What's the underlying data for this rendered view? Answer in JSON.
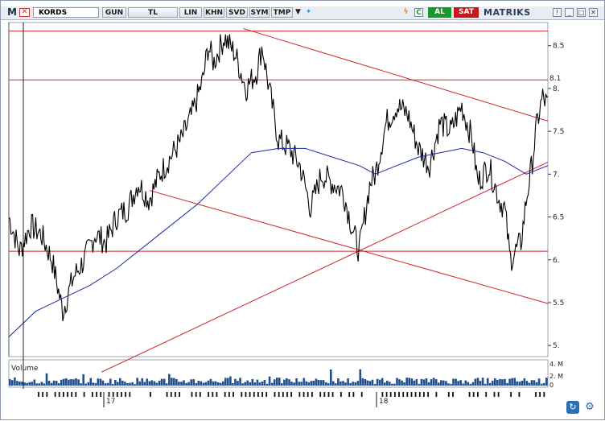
{
  "toolbar": {
    "logo": "M",
    "symbol": "KORDS",
    "buttons": [
      "GUN",
      "TL",
      "LIN",
      "KHN",
      "SVD",
      "SYM",
      "TMP"
    ],
    "buy": "AL",
    "sell": "SAT",
    "brand": "MATRIKS"
  },
  "colors": {
    "price": "#000000",
    "moving_average": "#1a2aa8",
    "trendline": "#d2232a",
    "volume": "#1f4f8f",
    "buy": "#179a2a",
    "sell": "#c8171d"
  },
  "chart_data": {
    "type": "line",
    "price_axis": {
      "ticks": [
        "8.5",
        "8.",
        "7.5",
        "7.",
        "6.5",
        "6.",
        "5.5",
        "5."
      ],
      "ylim": [
        4.87,
        8.77
      ]
    },
    "x_labels": [
      "17",
      "18"
    ],
    "annotations": [
      "8.1"
    ],
    "horizontal_levels": [
      8.67,
      8.1,
      6.1
    ],
    "trendlines": [
      {
        "from": [
          0.435,
          8.7
        ],
        "to": [
          1.0,
          7.62
        ]
      },
      {
        "from": [
          0.261,
          6.81
        ],
        "to": [
          1.0,
          5.49
        ]
      },
      {
        "from": [
          0.172,
          4.69
        ],
        "to": [
          1.0,
          7.14
        ]
      }
    ],
    "price_series": [
      [
        0.0,
        6.5
      ],
      [
        0.02,
        6.1
      ],
      [
        0.04,
        6.4
      ],
      [
        0.06,
        6.3
      ],
      [
        0.08,
        6.0
      ],
      [
        0.1,
        5.4
      ],
      [
        0.12,
        5.8
      ],
      [
        0.14,
        6.0
      ],
      [
        0.16,
        6.3
      ],
      [
        0.18,
        6.2
      ],
      [
        0.2,
        6.5
      ],
      [
        0.22,
        6.6
      ],
      [
        0.24,
        6.9
      ],
      [
        0.26,
        6.7
      ],
      [
        0.28,
        7.0
      ],
      [
        0.3,
        7.2
      ],
      [
        0.32,
        7.4
      ],
      [
        0.34,
        7.7
      ],
      [
        0.36,
        8.1
      ],
      [
        0.37,
        8.5
      ],
      [
        0.38,
        8.3
      ],
      [
        0.4,
        8.6
      ],
      [
        0.42,
        8.4
      ],
      [
        0.44,
        8.0
      ],
      [
        0.46,
        8.2
      ],
      [
        0.47,
        8.5
      ],
      [
        0.48,
        8.1
      ],
      [
        0.5,
        7.4
      ],
      [
        0.52,
        7.3
      ],
      [
        0.54,
        7.1
      ],
      [
        0.56,
        6.6
      ],
      [
        0.58,
        7.0
      ],
      [
        0.6,
        6.9
      ],
      [
        0.62,
        6.8
      ],
      [
        0.64,
        6.3
      ],
      [
        0.65,
        6.1
      ],
      [
        0.66,
        6.5
      ],
      [
        0.67,
        6.9
      ],
      [
        0.68,
        7.0
      ],
      [
        0.7,
        7.6
      ],
      [
        0.72,
        7.8
      ],
      [
        0.74,
        7.7
      ],
      [
        0.76,
        7.3
      ],
      [
        0.78,
        7.1
      ],
      [
        0.8,
        7.6
      ],
      [
        0.82,
        7.5
      ],
      [
        0.84,
        7.8
      ],
      [
        0.86,
        7.4
      ],
      [
        0.87,
        6.9
      ],
      [
        0.89,
        7.1
      ],
      [
        0.91,
        6.7
      ],
      [
        0.92,
        6.6
      ],
      [
        0.93,
        6.0
      ],
      [
        0.95,
        6.2
      ],
      [
        0.96,
        6.7
      ],
      [
        0.97,
        7.1
      ],
      [
        0.98,
        7.6
      ],
      [
        0.99,
        7.9
      ],
      [
        1.0,
        7.8
      ]
    ],
    "moving_average": [
      [
        0.0,
        5.1
      ],
      [
        0.05,
        5.4
      ],
      [
        0.1,
        5.55
      ],
      [
        0.15,
        5.7
      ],
      [
        0.2,
        5.9
      ],
      [
        0.25,
        6.15
      ],
      [
        0.3,
        6.4
      ],
      [
        0.35,
        6.65
      ],
      [
        0.4,
        6.95
      ],
      [
        0.45,
        7.25
      ],
      [
        0.5,
        7.3
      ],
      [
        0.55,
        7.3
      ],
      [
        0.6,
        7.2
      ],
      [
        0.65,
        7.1
      ],
      [
        0.68,
        7.0
      ],
      [
        0.72,
        7.1
      ],
      [
        0.76,
        7.2
      ],
      [
        0.8,
        7.25
      ],
      [
        0.84,
        7.3
      ],
      [
        0.88,
        7.25
      ],
      [
        0.92,
        7.15
      ],
      [
        0.96,
        7.0
      ],
      [
        1.0,
        7.1
      ]
    ],
    "volume": {
      "label": "Volume",
      "ticks": [
        "4. M",
        "2. M",
        "0"
      ],
      "ylim": [
        0,
        5
      ]
    }
  }
}
